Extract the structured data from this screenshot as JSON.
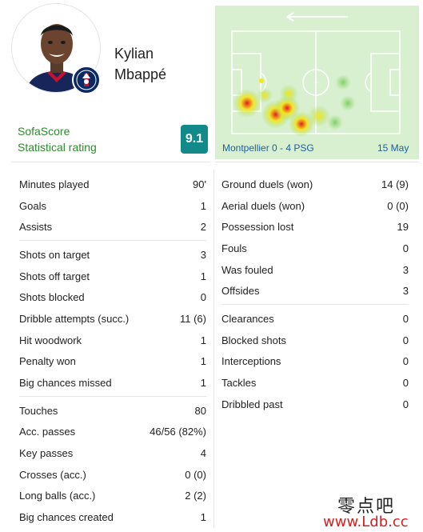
{
  "player": {
    "first_name": "Kylian",
    "last_name": "Mbappé",
    "avatar_icon": "player-photo",
    "club_icon": "psg-badge"
  },
  "rating": {
    "brand": "SofaScore",
    "label": "Statistical rating",
    "value": "9.1",
    "color": "#128a8a"
  },
  "match": {
    "label": "Montpellier 0 - 4 PSG",
    "date": "15 May",
    "attack_direction_icon": "arrow-left-icon"
  },
  "stats_left": [
    [
      {
        "label": "Minutes played",
        "value": "90'"
      },
      {
        "label": "Goals",
        "value": "1"
      },
      {
        "label": "Assists",
        "value": "2"
      }
    ],
    [
      {
        "label": "Shots on target",
        "value": "3"
      },
      {
        "label": "Shots off target",
        "value": "1"
      },
      {
        "label": "Shots blocked",
        "value": "0"
      },
      {
        "label": "Dribble attempts (succ.)",
        "value": "11 (6)"
      },
      {
        "label": "Hit woodwork",
        "value": "1"
      },
      {
        "label": "Penalty won",
        "value": "1"
      },
      {
        "label": "Big chances missed",
        "value": "1"
      }
    ],
    [
      {
        "label": "Touches",
        "value": "80"
      },
      {
        "label": "Acc. passes",
        "value": "46/56 (82%)"
      },
      {
        "label": "Key passes",
        "value": "4"
      },
      {
        "label": "Crosses (acc.)",
        "value": "0 (0)"
      },
      {
        "label": "Long balls (acc.)",
        "value": "2 (2)"
      },
      {
        "label": "Big chances created",
        "value": "1"
      }
    ]
  ],
  "stats_right": [
    [
      {
        "label": "Ground duels (won)",
        "value": "14 (9)"
      },
      {
        "label": "Aerial duels (won)",
        "value": "0 (0)"
      },
      {
        "label": "Possession lost",
        "value": "19"
      },
      {
        "label": "Fouls",
        "value": "0"
      },
      {
        "label": "Was fouled",
        "value": "3"
      },
      {
        "label": "Offsides",
        "value": "3"
      }
    ],
    [
      {
        "label": "Clearances",
        "value": "0"
      },
      {
        "label": "Blocked shots",
        "value": "0"
      },
      {
        "label": "Interceptions",
        "value": "0"
      },
      {
        "label": "Tackles",
        "value": "0"
      },
      {
        "label": "Dribbled past",
        "value": "0"
      }
    ]
  ],
  "watermark": {
    "chinese": "零点吧",
    "url": "www.Ldb.cc"
  }
}
